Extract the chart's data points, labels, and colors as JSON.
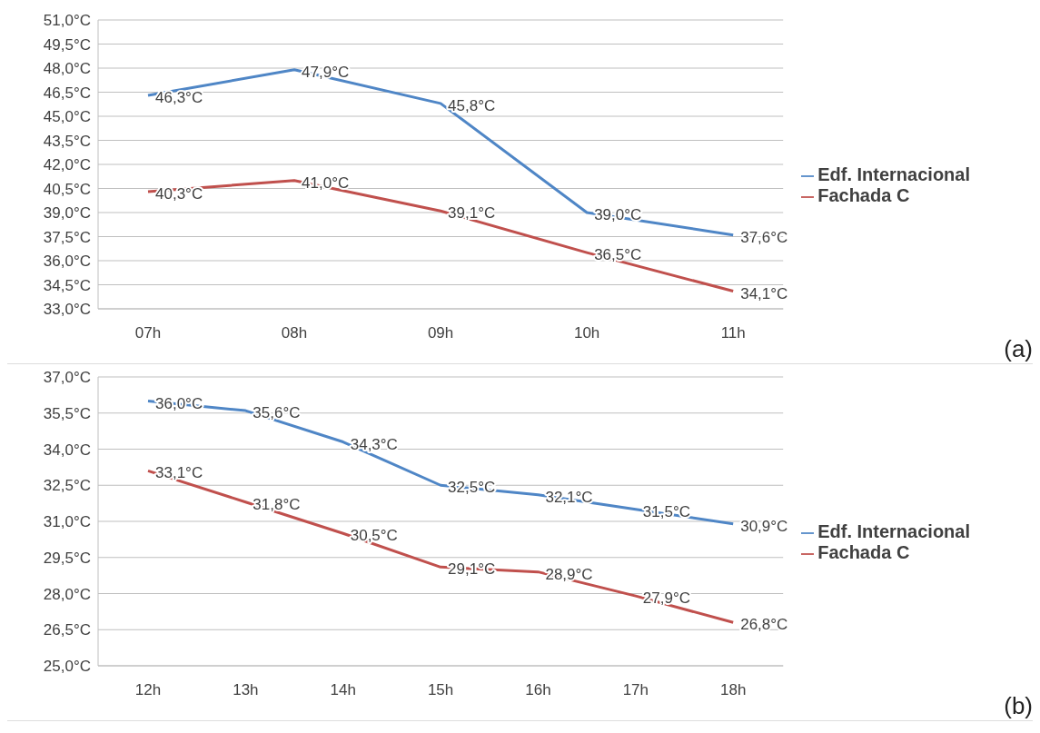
{
  "chart_data": [
    {
      "type": "line",
      "categories": [
        "07h",
        "08h",
        "09h",
        "10h",
        "11h"
      ],
      "series": [
        {
          "name": "Edf. Internacional",
          "color": "#4f86c6",
          "values": [
            46.3,
            47.9,
            45.8,
            39.0,
            37.6
          ],
          "value_labels": [
            "46,3°C",
            "47,9°C",
            "45,8°C",
            "39,0°C",
            "37,6°C"
          ]
        },
        {
          "name": "Fachada C",
          "color": "#c0504d",
          "values": [
            40.3,
            41.0,
            39.1,
            36.5,
            34.1
          ],
          "value_labels": [
            "40,3°C",
            "41,0°C",
            "39,1°C",
            "36,5°C",
            "34,1°C"
          ]
        }
      ],
      "ylim": [
        33.0,
        51.0
      ],
      "yticks": [
        {
          "value": 33.0,
          "label": "33,0°C"
        },
        {
          "value": 34.5,
          "label": "34,5°C"
        },
        {
          "value": 36.0,
          "label": "36,0°C"
        },
        {
          "value": 37.5,
          "label": "37,5°C"
        },
        {
          "value": 39.0,
          "label": "39,0°C"
        },
        {
          "value": 40.5,
          "label": "40,5°C"
        },
        {
          "value": 42.0,
          "label": "42,0°C"
        },
        {
          "value": 43.5,
          "label": "43,5°C"
        },
        {
          "value": 45.0,
          "label": "45,0°C"
        },
        {
          "value": 46.5,
          "label": "46,5°C"
        },
        {
          "value": 48.0,
          "label": "48,0°C"
        },
        {
          "value": 49.5,
          "label": "49,5°C"
        },
        {
          "value": 51.0,
          "label": "51,0°C"
        }
      ],
      "grid": "y",
      "legend": "right",
      "marker": "none",
      "annotations": [
        "(a)"
      ]
    },
    {
      "type": "line",
      "categories": [
        "12h",
        "13h",
        "14h",
        "15h",
        "16h",
        "17h",
        "18h"
      ],
      "series": [
        {
          "name": "Edf. Internacional",
          "color": "#4f86c6",
          "values": [
            36.0,
            35.6,
            34.3,
            32.5,
            32.1,
            31.5,
            30.9
          ],
          "value_labels": [
            "36,0°C",
            "35,6°C",
            "34,3°C",
            "32,5°C",
            "32,1°C",
            "31,5°C",
            "30,9°C"
          ]
        },
        {
          "name": "Fachada C",
          "color": "#c0504d",
          "values": [
            33.1,
            31.8,
            30.5,
            29.1,
            28.9,
            27.9,
            26.8
          ],
          "value_labels": [
            "33,1°C",
            "31,8°C",
            "30,5°C",
            "29,1°C",
            "28,9°C",
            "27,9°C",
            "26,8°C"
          ]
        }
      ],
      "ylim": [
        25.0,
        37.0
      ],
      "yticks": [
        {
          "value": 25.0,
          "label": "25,0°C"
        },
        {
          "value": 26.5,
          "label": "26,5°C"
        },
        {
          "value": 28.0,
          "label": "28,0°C"
        },
        {
          "value": 29.5,
          "label": "29,5°C"
        },
        {
          "value": 31.0,
          "label": "31,0°C"
        },
        {
          "value": 32.5,
          "label": "32,5°C"
        },
        {
          "value": 34.0,
          "label": "34,0°C"
        },
        {
          "value": 35.5,
          "label": "35,5°C"
        },
        {
          "value": 37.0,
          "label": "37,0°C"
        }
      ],
      "grid": "y",
      "legend": "right",
      "marker": "none",
      "annotations": [
        "(b)"
      ]
    }
  ]
}
